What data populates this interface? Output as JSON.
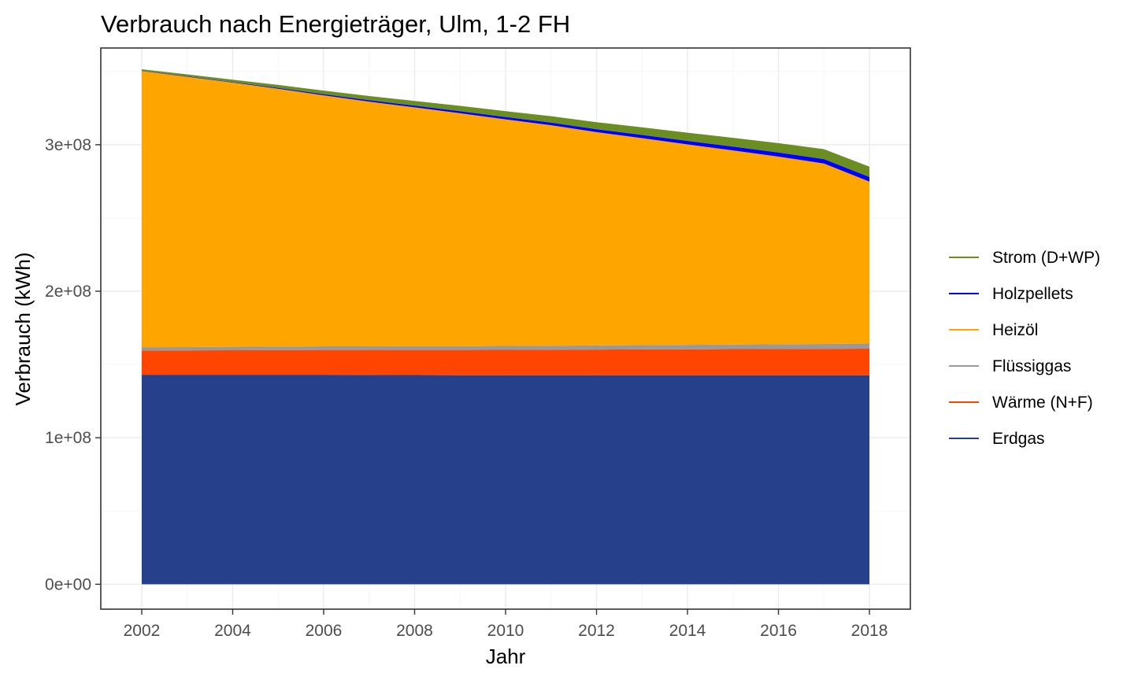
{
  "chart_data": {
    "type": "area",
    "stacked": true,
    "title": "Verbrauch nach Energieträger, Ulm, 1-2 FH",
    "xlabel": "Jahr",
    "ylabel": "Verbrauch (kWh)",
    "x": [
      2002,
      2003,
      2004,
      2005,
      2006,
      2007,
      2008,
      2009,
      2010,
      2011,
      2012,
      2013,
      2014,
      2015,
      2016,
      2017,
      2018
    ],
    "xlim": [
      2001.1,
      2018.9
    ],
    "ylim": [
      -17000000,
      366000000
    ],
    "x_ticks": [
      "2002",
      "2004",
      "2006",
      "2008",
      "2010",
      "2012",
      "2014",
      "2016",
      "2018"
    ],
    "x_tick_values": [
      2002,
      2004,
      2006,
      2008,
      2010,
      2012,
      2014,
      2016,
      2018
    ],
    "y_ticks": [
      "0e+00",
      "1e+08",
      "2e+08",
      "3e+08"
    ],
    "y_tick_values": [
      0,
      100000000,
      200000000,
      300000000
    ],
    "grid": true,
    "legend_position": "right",
    "series": [
      {
        "name": "Erdgas",
        "color": "#27408B",
        "values": [
          143000000,
          143000000,
          143000000,
          143000000,
          143000000,
          142900000,
          142800000,
          142700000,
          142700000,
          142700000,
          142700000,
          142700000,
          142700000,
          142700000,
          142700000,
          142700000,
          142700000
        ]
      },
      {
        "name": "Wärme (N+F)",
        "color": "#FF4500",
        "values": [
          16500000,
          16600000,
          16700000,
          16800000,
          16900000,
          17000000,
          17100000,
          17200000,
          17300000,
          17400000,
          17500000,
          17600000,
          17700000,
          17800000,
          17900000,
          18000000,
          18100000
        ]
      },
      {
        "name": "Flüssiggas",
        "color": "#999999",
        "values": [
          2300000,
          2300000,
          2400000,
          2400000,
          2500000,
          2500000,
          2600000,
          2600000,
          2700000,
          2700000,
          2800000,
          2900000,
          3000000,
          3100000,
          3200000,
          3300000,
          3500000
        ]
      },
      {
        "name": "Heizöl",
        "color": "#FFA500",
        "values": [
          188500000,
          184500000,
          180300000,
          176000000,
          171300000,
          167000000,
          163000000,
          159000000,
          154600000,
          150500000,
          145600000,
          141300000,
          136800000,
          132500000,
          128100000,
          123200000,
          110500000
        ]
      },
      {
        "name": "Holzpellets",
        "color": "#0000FF",
        "values": [
          200000,
          300000,
          400000,
          600000,
          800000,
          1000000,
          1200000,
          1400000,
          1600000,
          1800000,
          2000000,
          2200000,
          2400000,
          2600000,
          2800000,
          3000000,
          3200000
        ]
      },
      {
        "name": "Strom (D+WP)",
        "color": "#6B8E23",
        "values": [
          1000000,
          1300000,
          1600000,
          2000000,
          2400000,
          2800000,
          3200000,
          3600000,
          4000000,
          4400000,
          4800000,
          5200000,
          5600000,
          6000000,
          6400000,
          6800000,
          7000000
        ]
      }
    ],
    "legend_order": [
      "Strom (D+WP)",
      "Holzpellets",
      "Heizöl",
      "Flüssiggas",
      "Wärme (N+F)",
      "Erdgas"
    ]
  }
}
